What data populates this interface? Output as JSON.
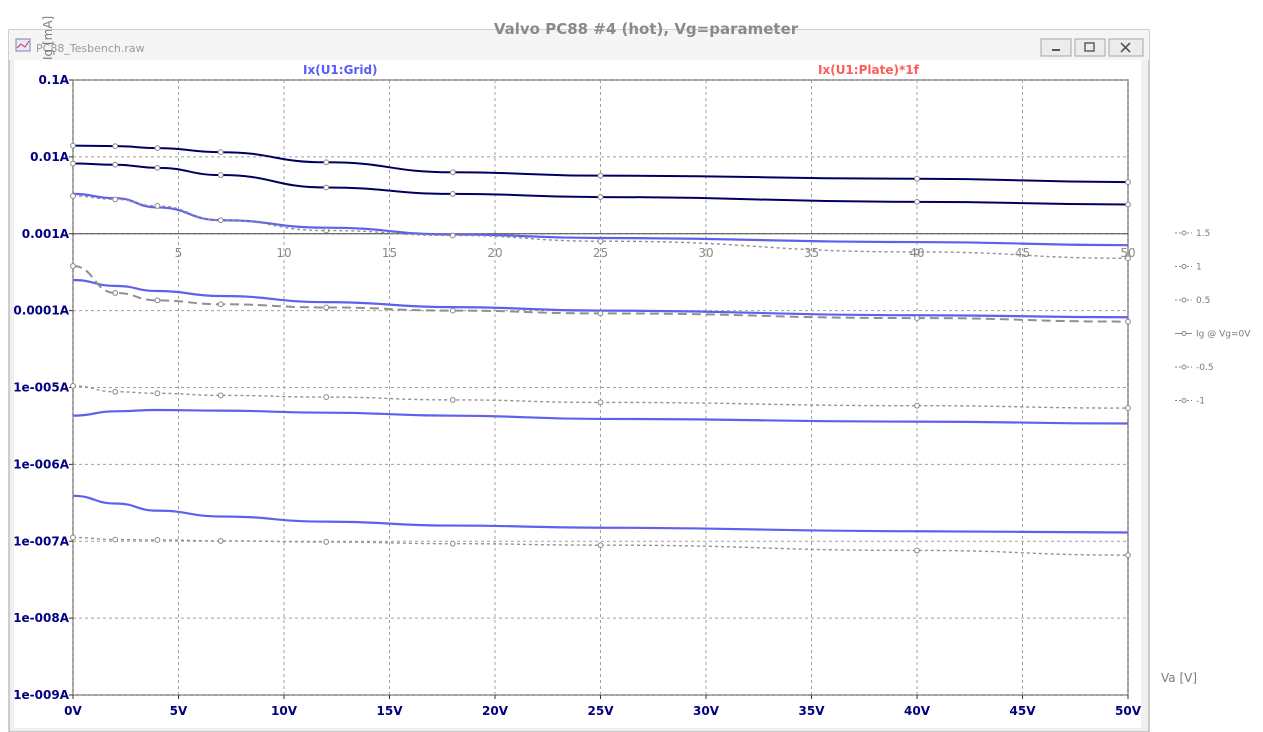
{
  "overlay": {
    "title": "Valvo PC88 #4 (hot), Vg=parameter",
    "ylabel": "Ig [mA]",
    "xlabel": "Va [V]",
    "x_ticks": [
      "5",
      "10",
      "15",
      "20",
      "25",
      "30",
      "35",
      "40",
      "45",
      "50"
    ]
  },
  "window": {
    "title": "PC88_Tesbench.raw",
    "minimize_icon": "minimize-icon",
    "restore_icon": "restore-icon",
    "close_icon": "close-icon"
  },
  "legend": {
    "items": [
      "1.5",
      "1",
      "0.5",
      "Ig @ Vg=0V",
      "-0.5",
      "-1"
    ]
  },
  "chart_data": {
    "type": "line",
    "xlabel": "",
    "ylabel": "",
    "x_ticks": [
      "0V",
      "5V",
      "10V",
      "15V",
      "20V",
      "25V",
      "30V",
      "35V",
      "40V",
      "45V",
      "50V"
    ],
    "y_ticks": [
      "0.1A",
      "0.01A",
      "0.001A",
      "0.0001A",
      "1e-005A",
      "1e-006A",
      "1e-007A",
      "1e-008A",
      "1e-009A"
    ],
    "y_scale": "log",
    "xlim": [
      0,
      50
    ],
    "ylim": [
      1e-09,
      0.1
    ],
    "grid": true,
    "trace_labels": [
      {
        "text": "Ix(U1:Grid)",
        "color": "#5a5aff"
      },
      {
        "text": "Ix(U1:Plate)*1f",
        "color": "#ff5a5a"
      }
    ],
    "series": [
      {
        "style": "dark",
        "color": "#000060",
        "x": [
          0,
          2,
          4,
          7,
          12,
          18,
          25,
          40,
          50
        ],
        "y": [
          0.014,
          0.0138,
          0.013,
          0.0115,
          0.0085,
          0.0063,
          0.0057,
          0.0052,
          0.0047
        ]
      },
      {
        "style": "dark",
        "color": "#000060",
        "x": [
          0,
          2,
          4,
          7,
          12,
          18,
          25,
          40,
          50
        ],
        "y": [
          0.0082,
          0.0079,
          0.0072,
          0.0058,
          0.004,
          0.0033,
          0.003,
          0.0026,
          0.0024
        ]
      },
      {
        "style": "blue",
        "color": "#6060ee",
        "x": [
          0,
          2,
          4,
          7,
          12,
          18,
          25,
          40,
          50
        ],
        "y": [
          0.0033,
          0.0029,
          0.0022,
          0.0015,
          0.0012,
          0.00098,
          0.00088,
          0.00078,
          0.00071
        ]
      },
      {
        "style": "dotted",
        "color": "#909090",
        "x": [
          0,
          2,
          4,
          7,
          12,
          18,
          25,
          40,
          50
        ],
        "y": [
          0.0031,
          0.0028,
          0.0023,
          0.0015,
          0.0011,
          0.00095,
          0.0008,
          0.00058,
          0.00048
        ]
      },
      {
        "style": "blue",
        "color": "#6060ee",
        "x": [
          0,
          2,
          4,
          7,
          12,
          18,
          25,
          40,
          50
        ],
        "y": [
          0.00025,
          0.00021,
          0.00018,
          0.000155,
          0.000129,
          0.000111,
          0.0001,
          8.7e-05,
          8.2e-05
        ]
      },
      {
        "style": "dashed",
        "color": "#909090",
        "x": [
          0,
          2,
          4,
          7,
          12,
          18,
          25,
          40,
          50
        ],
        "y": [
          0.00038,
          0.00017,
          0.000136,
          0.000121,
          0.00011,
          0.0001,
          9.2e-05,
          8e-05,
          7.2e-05
        ]
      },
      {
        "style": "dotted",
        "color": "#909090",
        "x": [
          0,
          2,
          4,
          7,
          12,
          18,
          25,
          40,
          50
        ],
        "y": [
          1.05e-05,
          8.8e-06,
          8.4e-06,
          7.9e-06,
          7.5e-06,
          6.9e-06,
          6.4e-06,
          5.8e-06,
          5.4e-06
        ]
      },
      {
        "style": "blue",
        "color": "#6060ee",
        "x": [
          0,
          2,
          4,
          7,
          12,
          18,
          25,
          40,
          50
        ],
        "y": [
          4.3e-06,
          4.9e-06,
          5.1e-06,
          5e-06,
          4.7e-06,
          4.3e-06,
          3.9e-06,
          3.6e-06,
          3.4e-06
        ]
      },
      {
        "style": "blue",
        "color": "#6060ee",
        "x": [
          0,
          2,
          4,
          7,
          12,
          18,
          25,
          40,
          50
        ],
        "y": [
          3.9e-07,
          3.1e-07,
          2.5e-07,
          2.1e-07,
          1.8e-07,
          1.6e-07,
          1.5e-07,
          1.35e-07,
          1.3e-07
        ]
      },
      {
        "style": "dotted",
        "color": "#909090",
        "x": [
          0,
          2,
          4,
          7,
          12,
          18,
          25,
          40,
          50
        ],
        "y": [
          1.12e-07,
          1.05e-07,
          1.04e-07,
          1.01e-07,
          9.8e-08,
          9.3e-08,
          8.9e-08,
          7.6e-08,
          6.6e-08
        ]
      }
    ]
  }
}
